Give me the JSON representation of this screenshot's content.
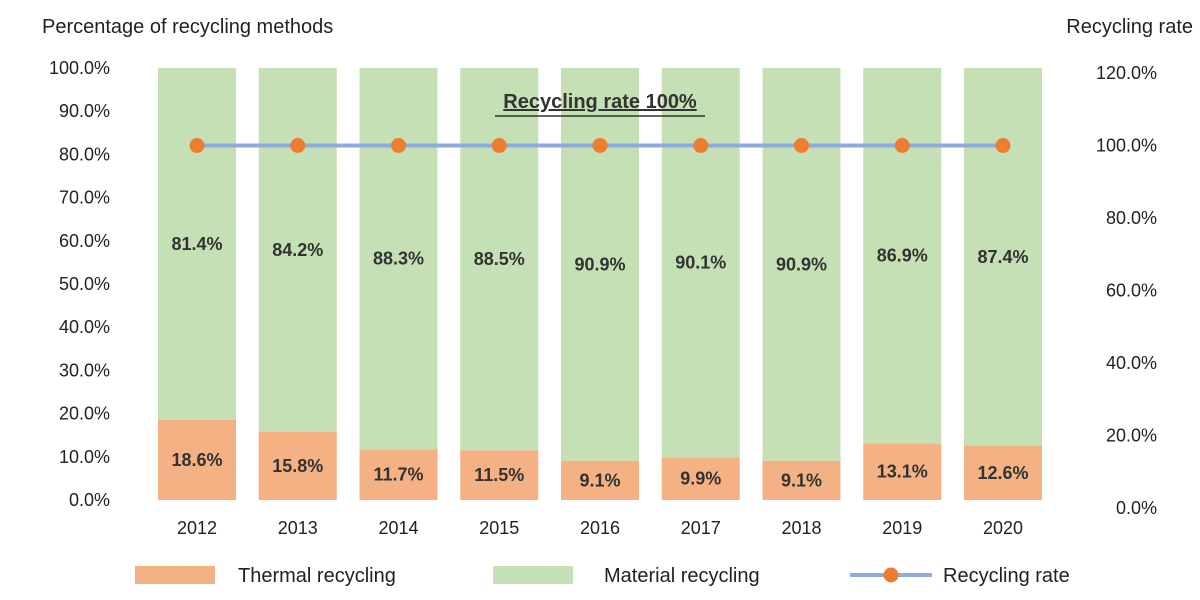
{
  "chart_data": {
    "type": "bar",
    "stacked": true,
    "categories": [
      "2012",
      "2013",
      "2014",
      "2015",
      "2016",
      "2017",
      "2018",
      "2019",
      "2020"
    ],
    "series": [
      {
        "name": "Thermal recycling",
        "kind": "bar",
        "axis": "left",
        "color": "#F4B183",
        "values": [
          18.6,
          15.8,
          11.7,
          11.5,
          9.1,
          9.9,
          9.1,
          13.1,
          12.6
        ],
        "labels": [
          "18.6%",
          "15.8%",
          "11.7%",
          "11.5%",
          "9.1%",
          "9.9%",
          "9.1%",
          "13.1%",
          "12.6%"
        ]
      },
      {
        "name": "Material recycling",
        "kind": "bar",
        "axis": "left",
        "color": "#C5E0B4",
        "values": [
          81.4,
          84.2,
          88.3,
          88.5,
          90.9,
          90.1,
          90.9,
          86.9,
          87.4
        ],
        "labels": [
          "81.4%",
          "84.2%",
          "88.3%",
          "88.5%",
          "90.9%",
          "90.1%",
          "90.9%",
          "86.9%",
          "87.4%"
        ]
      },
      {
        "name": "Recycling rate",
        "kind": "line",
        "axis": "right",
        "color": "#8FAADC",
        "marker_color": "#ED7D31",
        "values": [
          100,
          100,
          100,
          100,
          100,
          100,
          100,
          100,
          100
        ]
      }
    ],
    "left_axis": {
      "label": "Percentage of recycling methods",
      "ylim": [
        0,
        100
      ],
      "ticks": [
        "0.0%",
        "10.0%",
        "20.0%",
        "30.0%",
        "40.0%",
        "50.0%",
        "60.0%",
        "70.0%",
        "80.0%",
        "90.0%",
        "100.0%"
      ]
    },
    "right_axis": {
      "label": "Recycling rate",
      "ylim": [
        0,
        120
      ],
      "ticks": [
        "0.0%",
        "20.0%",
        "40.0%",
        "60.0%",
        "80.0%",
        "100.0%",
        "120.0%"
      ]
    },
    "annotation": "Recycling rate 100%",
    "legend_position": "bottom",
    "grid": false
  }
}
